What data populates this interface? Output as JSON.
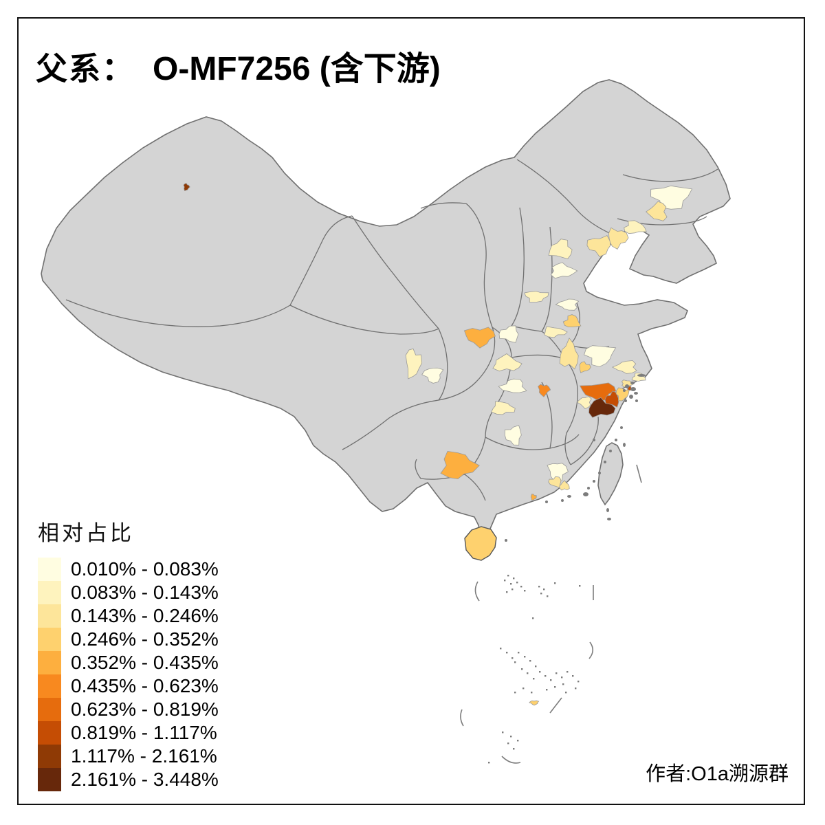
{
  "title": {
    "prefix": "父系：",
    "main": "O-MF7256 (含下游)"
  },
  "legend": {
    "title": "相对占比",
    "items": [
      {
        "label": "0.010% - 0.083%",
        "color": "#FFFDE1"
      },
      {
        "label": "0.083% - 0.143%",
        "color": "#FEF3BE"
      },
      {
        "label": "0.143% - 0.246%",
        "color": "#FDE59A"
      },
      {
        "label": "0.246% - 0.352%",
        "color": "#FED16E"
      },
      {
        "label": "0.352% - 0.435%",
        "color": "#FDAF3F"
      },
      {
        "label": "0.435% - 0.623%",
        "color": "#F8891F"
      },
      {
        "label": "0.623% - 0.819%",
        "color": "#E66C0D"
      },
      {
        "label": "0.819% - 1.117%",
        "color": "#C54D04"
      },
      {
        "label": "1.117% - 2.161%",
        "color": "#8F3A05"
      },
      {
        "label": "2.161% - 3.448%",
        "color": "#67280B"
      }
    ]
  },
  "author": "作者:O1a溯源群",
  "map": {
    "background": "#FFFFFF",
    "land_color": "#D4D4D4",
    "border_color": "#707070",
    "islet_color": "#7C7C7C",
    "palette": [
      "#FFFDE1",
      "#FEF3BE",
      "#FDE59A",
      "#FED16E",
      "#FDAF3F",
      "#F8891F",
      "#E66C0D",
      "#C54D04",
      "#8F3A05",
      "#67280B"
    ],
    "regions": [
      [
        "region-karamay",
        271,
        272,
        4,
        5,
        9
      ],
      [
        "region-jilin-central",
        976,
        286,
        27,
        17,
        1
      ],
      [
        "region-liaoning-ne",
        957,
        308,
        13,
        13,
        3
      ],
      [
        "region-liaoning-west",
        923,
        331,
        15,
        9,
        2
      ],
      [
        "region-liaoning-chaoyang",
        898,
        346,
        14,
        13,
        3
      ],
      [
        "region-hebei-qinhuangdao",
        872,
        357,
        17,
        13,
        3
      ],
      [
        "region-beijing",
        816,
        363,
        16,
        13,
        2
      ],
      [
        "region-hebei-baoding",
        818,
        394,
        17,
        10,
        1
      ],
      [
        "region-shanxi-taiyuan",
        780,
        431,
        16,
        8,
        2
      ],
      [
        "region-hebei-handan",
        827,
        443,
        14,
        8,
        1
      ],
      [
        "region-jiangsu-xuzhou",
        832,
        468,
        11,
        9,
        4
      ],
      [
        "region-henan-north",
        806,
        483,
        16,
        7,
        2
      ],
      [
        "region-shaanxi-hanzhong",
        698,
        489,
        21,
        13,
        5
      ],
      [
        "region-henan-nanyang",
        741,
        486,
        14,
        11,
        1
      ],
      [
        "region-hubei-xiangyang",
        737,
        529,
        19,
        11,
        2
      ],
      [
        "region-sichuan-chengdu-w",
        601,
        528,
        11,
        20,
        2
      ],
      [
        "region-sichuan-chengdu-e",
        630,
        545,
        13,
        11,
        1
      ],
      [
        "region-hubei-jingmen",
        747,
        562,
        17,
        10,
        1
      ],
      [
        "region-hubei-jingzhou",
        731,
        594,
        16,
        9,
        2
      ],
      [
        "region-hubei-east",
        791,
        567,
        8,
        8,
        6
      ],
      [
        "region-hunan-changde",
        747,
        633,
        12,
        13,
        1
      ],
      [
        "region-anhui-chuzhou",
        828,
        517,
        13,
        19,
        3
      ],
      [
        "region-anhui-se",
        850,
        534,
        8,
        7,
        4
      ],
      [
        "region-jiangsu-nanjing",
        872,
        516,
        20,
        15,
        1
      ],
      [
        "region-jiangsu-suzhou",
        911,
        534,
        15,
        9,
        2
      ],
      [
        "region-shanghai",
        929,
        549,
        9,
        6,
        2
      ],
      [
        "region-zhejiang-jiaxing",
        912,
        558,
        8,
        5,
        3
      ],
      [
        "region-zhejiang-hangzhou",
        871,
        569,
        24,
        12,
        7
      ],
      [
        "region-zhejiang-shaoxing",
        891,
        581,
        10,
        10,
        8
      ],
      [
        "region-zhejiang-jinhua",
        874,
        594,
        19,
        12,
        10
      ],
      [
        "region-zhejiang-ningbo",
        905,
        573,
        9,
        9,
        4
      ],
      [
        "region-zhejiang-west",
        851,
        585,
        9,
        8,
        2
      ],
      [
        "region-zhoushan",
        916,
        565,
        3,
        3,
        8
      ],
      [
        "region-guizhou-central",
        666,
        677,
        24,
        19,
        5
      ],
      [
        "region-guangdong-guangzhou",
        811,
        686,
        13,
        14,
        1
      ],
      [
        "region-guangdong-foshan",
        808,
        701,
        9,
        7,
        3
      ],
      [
        "region-guangdong-east",
        821,
        707,
        7,
        6,
        3
      ],
      [
        "region-guangdong-delta-dot",
        776,
        723,
        4,
        4,
        5
      ],
      [
        "region-south-sea-isle",
        777,
        1022,
        6,
        3,
        4
      ]
    ],
    "hainan_class": 4
  }
}
